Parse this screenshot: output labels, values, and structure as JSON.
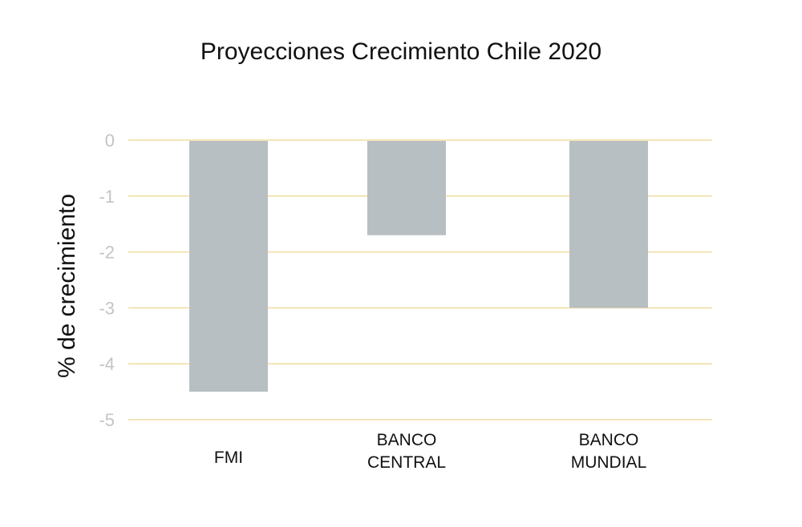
{
  "chart_data": {
    "type": "bar",
    "title": "Proyecciones Crecimiento Chile 2020",
    "xlabel": "",
    "ylabel": "% de crecimiento",
    "categories": [
      [
        "FMI"
      ],
      [
        "BANCO",
        "CENTRAL"
      ],
      [
        "BANCO",
        "MUNDIAL"
      ]
    ],
    "values": [
      -4.5,
      -1.7,
      -3.0
    ],
    "ylim": [
      -5,
      0
    ],
    "yticks": [
      0,
      -1,
      -2,
      -3,
      -4,
      -5
    ],
    "grid": true,
    "legend": "none",
    "colors": {
      "bar": "#b8bfc2",
      "grid": "#f0dc9e",
      "tick_text": "#c4c4c4",
      "text": "#111111"
    }
  }
}
